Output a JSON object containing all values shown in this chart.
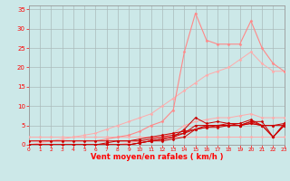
{
  "x": [
    0,
    1,
    2,
    3,
    4,
    5,
    6,
    7,
    8,
    9,
    10,
    11,
    12,
    13,
    14,
    15,
    16,
    17,
    18,
    19,
    20,
    21,
    22,
    23
  ],
  "lines": [
    {
      "y": [
        2,
        2,
        2,
        2,
        2,
        2,
        2,
        2,
        2,
        2,
        2,
        2,
        2,
        2,
        2,
        2,
        2,
        2,
        2,
        2,
        2,
        2,
        2,
        2
      ],
      "color": "#ffaaaa",
      "lw": 0.7,
      "marker": "D",
      "ms": 1.5
    },
    {
      "y": [
        0,
        0,
        0,
        0,
        0,
        0,
        0,
        0,
        0,
        0.5,
        1,
        1.5,
        2,
        3,
        5,
        6,
        6.5,
        7,
        7,
        7.5,
        8,
        7,
        7,
        7
      ],
      "color": "#ffaaaa",
      "lw": 0.7,
      "marker": "D",
      "ms": 1.5
    },
    {
      "y": [
        0,
        0.5,
        1,
        1.5,
        2,
        2.5,
        3,
        4,
        5,
        6,
        7,
        8,
        10,
        12,
        14,
        16,
        18,
        19,
        20,
        22,
        24,
        21,
        19,
        19
      ],
      "color": "#ffaaaa",
      "lw": 0.7,
      "marker": "D",
      "ms": 1.5
    },
    {
      "y": [
        1,
        1,
        1,
        1,
        1,
        1,
        1,
        1.5,
        2,
        2.5,
        3.5,
        5,
        6,
        9,
        24,
        34,
        27,
        26,
        26,
        26,
        32,
        25,
        21,
        19
      ],
      "color": "#ff8888",
      "lw": 0.8,
      "marker": "D",
      "ms": 1.5
    },
    {
      "y": [
        0,
        0,
        0,
        0,
        0,
        0,
        0,
        0,
        0,
        0,
        0.5,
        1,
        1.5,
        2,
        3,
        5,
        5,
        5,
        5,
        5,
        6,
        6,
        2,
        5
      ],
      "color": "#cc0000",
      "lw": 0.7,
      "marker": "D",
      "ms": 1.5
    },
    {
      "y": [
        0,
        0,
        0,
        0,
        0,
        0,
        0,
        0,
        0,
        0,
        0.5,
        1,
        1.5,
        2,
        4,
        7,
        5.5,
        6,
        5.5,
        5,
        6,
        5,
        2,
        5
      ],
      "color": "#cc0000",
      "lw": 0.7,
      "marker": "D",
      "ms": 1.5
    },
    {
      "y": [
        0,
        0,
        0,
        0,
        0,
        0,
        0,
        0,
        0,
        0,
        0.5,
        1,
        1,
        1.5,
        2,
        4,
        5,
        5,
        5.5,
        5.5,
        6.5,
        5,
        2,
        5.5
      ],
      "color": "#cc0000",
      "lw": 0.7,
      "marker": "D",
      "ms": 1.5
    },
    {
      "y": [
        1,
        1,
        1,
        1,
        1,
        1,
        1,
        1,
        1,
        1,
        1,
        1.5,
        2,
        2.5,
        3,
        4,
        4.5,
        5,
        5,
        5,
        5.5,
        5,
        5,
        5.5
      ],
      "color": "#cc0000",
      "lw": 0.7,
      "marker": "D",
      "ms": 1.5
    },
    {
      "y": [
        0,
        0,
        0,
        0,
        0,
        0,
        0,
        0.5,
        1,
        1,
        1.5,
        2,
        2.5,
        3,
        3.5,
        4,
        4.5,
        4.5,
        5,
        5,
        5.5,
        5,
        5,
        5
      ],
      "color": "#cc0000",
      "lw": 0.7,
      "marker": "D",
      "ms": 1.5
    }
  ],
  "xlim": [
    0,
    23
  ],
  "ylim": [
    0,
    36
  ],
  "yticks": [
    0,
    5,
    10,
    15,
    20,
    25,
    30,
    35
  ],
  "xticks": [
    0,
    1,
    2,
    3,
    4,
    5,
    6,
    7,
    8,
    9,
    10,
    11,
    12,
    13,
    14,
    15,
    16,
    17,
    18,
    19,
    20,
    21,
    22,
    23
  ],
  "xlabel": "Vent moyen/en rafales ( km/h )",
  "bg_color": "#cce8e8",
  "grid_color": "#aabbbb",
  "tick_color": "#ff0000",
  "label_color": "#ff0000",
  "axis_color": "#999999"
}
